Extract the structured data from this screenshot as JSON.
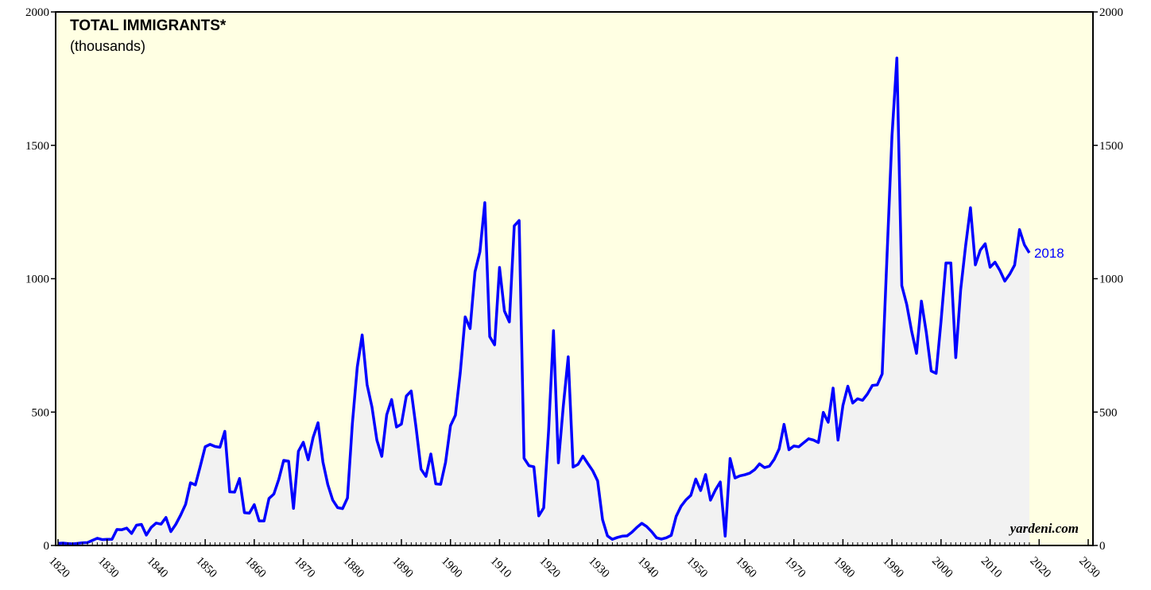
{
  "chart_data": {
    "type": "area-line",
    "title": "TOTAL IMMIGRANTS*",
    "subtitle": "(thousands)",
    "end_label": "2018",
    "source": "yardeni.com",
    "x": [
      1820,
      1821,
      1822,
      1823,
      1824,
      1825,
      1826,
      1827,
      1828,
      1829,
      1830,
      1831,
      1832,
      1833,
      1834,
      1835,
      1836,
      1837,
      1838,
      1839,
      1840,
      1841,
      1842,
      1843,
      1844,
      1845,
      1846,
      1847,
      1848,
      1849,
      1850,
      1851,
      1852,
      1853,
      1854,
      1855,
      1856,
      1857,
      1858,
      1859,
      1860,
      1861,
      1862,
      1863,
      1864,
      1865,
      1866,
      1867,
      1868,
      1869,
      1870,
      1871,
      1872,
      1873,
      1874,
      1875,
      1876,
      1877,
      1878,
      1879,
      1880,
      1881,
      1882,
      1883,
      1884,
      1885,
      1886,
      1887,
      1888,
      1889,
      1890,
      1891,
      1892,
      1893,
      1894,
      1895,
      1896,
      1897,
      1898,
      1899,
      1900,
      1901,
      1902,
      1903,
      1904,
      1905,
      1906,
      1907,
      1908,
      1909,
      1910,
      1911,
      1912,
      1913,
      1914,
      1915,
      1916,
      1917,
      1918,
      1919,
      1920,
      1921,
      1922,
      1923,
      1924,
      1925,
      1926,
      1927,
      1928,
      1929,
      1930,
      1931,
      1932,
      1933,
      1934,
      1935,
      1936,
      1937,
      1938,
      1939,
      1940,
      1941,
      1942,
      1943,
      1944,
      1945,
      1946,
      1947,
      1948,
      1949,
      1950,
      1951,
      1952,
      1953,
      1954,
      1955,
      1956,
      1957,
      1958,
      1959,
      1960,
      1961,
      1962,
      1963,
      1964,
      1965,
      1966,
      1967,
      1968,
      1969,
      1970,
      1971,
      1972,
      1973,
      1974,
      1975,
      1976,
      1977,
      1978,
      1979,
      1980,
      1981,
      1982,
      1983,
      1984,
      1985,
      1986,
      1987,
      1988,
      1989,
      1990,
      1991,
      1992,
      1993,
      1994,
      1995,
      1996,
      1997,
      1998,
      1999,
      2000,
      2001,
      2002,
      2003,
      2004,
      2005,
      2006,
      2007,
      2008,
      2009,
      2010,
      2011,
      2012,
      2013,
      2014,
      2015,
      2016,
      2017,
      2018
    ],
    "series": [
      {
        "color": "#0000ff",
        "fill": "#f2f2f2",
        "values": [
          8,
          9,
          7,
          6,
          8,
          10,
          11,
          19,
          27,
          22,
          23,
          23,
          60,
          59,
          65,
          45,
          76,
          79,
          39,
          68,
          84,
          80,
          105,
          52,
          79,
          114,
          154,
          235,
          227,
          297,
          370,
          379,
          371,
          368,
          428,
          201,
          200,
          251,
          123,
          121,
          153,
          92,
          92,
          176,
          193,
          248,
          319,
          316,
          139,
          353,
          387,
          321,
          405,
          460,
          313,
          228,
          170,
          142,
          138,
          178,
          457,
          669,
          789,
          603,
          519,
          395,
          334,
          490,
          547,
          444,
          455,
          560,
          579,
          440,
          286,
          259,
          343,
          231,
          229,
          312,
          449,
          488,
          649,
          857,
          813,
          1026,
          1101,
          1285,
          783,
          752,
          1042,
          879,
          838,
          1198,
          1218,
          327,
          299,
          295,
          111,
          141,
          430,
          805,
          310,
          523,
          707,
          294,
          304,
          335,
          307,
          280,
          242,
          97,
          36,
          23,
          30,
          35,
          36,
          50,
          68,
          83,
          71,
          52,
          29,
          24,
          29,
          38,
          109,
          147,
          171,
          188,
          249,
          206,
          266,
          170,
          208,
          238,
          35,
          326,
          253,
          261,
          265,
          271,
          284,
          306,
          292,
          297,
          323,
          362,
          454,
          359,
          373,
          370,
          385,
          400,
          395,
          386,
          499,
          462,
          590,
          395,
          525,
          597,
          534,
          550,
          544,
          568,
          600,
          602,
          643,
          1091,
          1536,
          1827,
          974,
          904,
          804,
          720,
          916,
          798,
          654,
          645,
          841,
          1059,
          1059,
          704,
          958,
          1122,
          1266,
          1052,
          1107,
          1131,
          1043,
          1062,
          1031,
          991,
          1017,
          1051,
          1184,
          1127,
          1097
        ]
      }
    ],
    "xlim": [
      1820,
      2030
    ],
    "xticks": [
      1820,
      1830,
      1840,
      1850,
      1860,
      1870,
      1880,
      1890,
      1900,
      1910,
      1920,
      1930,
      1940,
      1950,
      1960,
      1970,
      1980,
      1990,
      2000,
      2010,
      2020,
      2030
    ],
    "ylim": [
      0,
      2000
    ],
    "yticks": [
      0,
      500,
      1000,
      1500,
      2000
    ],
    "background": "#ffffe3"
  }
}
